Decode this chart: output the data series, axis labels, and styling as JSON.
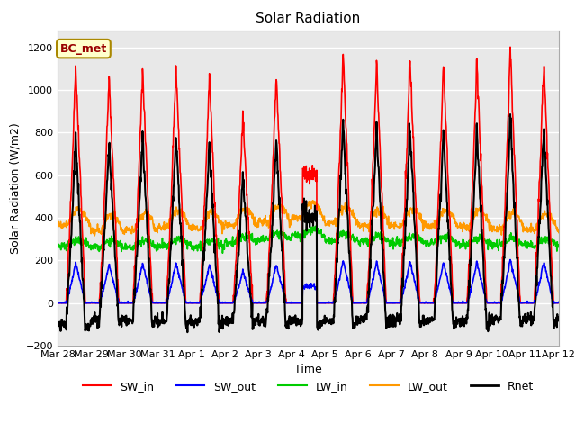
{
  "title": "Solar Radiation",
  "xlabel": "Time",
  "ylabel": "Solar Radiation (W/m2)",
  "ylim": [
    -200,
    1280
  ],
  "yticks": [
    -200,
    0,
    200,
    400,
    600,
    800,
    1000,
    1200
  ],
  "num_days": 15,
  "colors": {
    "SW_in": "#ff0000",
    "SW_out": "#0000ff",
    "LW_in": "#00cc00",
    "LW_out": "#ff9900",
    "Rnet": "#000000"
  },
  "linewidths": {
    "SW_in": 1.2,
    "SW_out": 1.2,
    "LW_in": 1.2,
    "LW_out": 1.2,
    "Rnet": 1.5
  },
  "label_box_text": "BC_met",
  "facecolor": "#e8e8e8",
  "xticklabels": [
    "Mar 28",
    "Mar 29",
    "Mar 30",
    "Mar 31",
    "Apr 1",
    "Apr 2",
    "Apr 3",
    "Apr 4",
    "Apr 5",
    "Apr 6",
    "Apr 7",
    "Apr 8",
    "Apr 9",
    "Apr 10",
    "Apr 11",
    "Apr 12"
  ]
}
